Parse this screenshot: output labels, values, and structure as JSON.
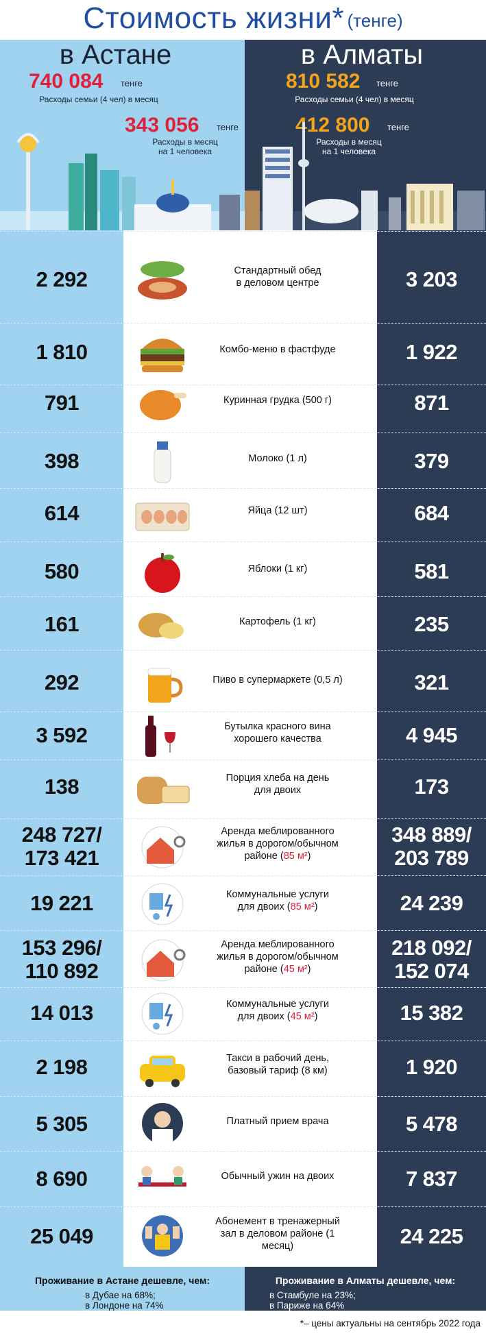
{
  "header": {
    "title": "Стоимость жизни",
    "asterisk": "*",
    "unit": "(тенге)"
  },
  "astana": {
    "city": "в Астане",
    "family_total": "740 084",
    "family_unit": "тенге",
    "family_note": "Расходы семьи (4 чел) в месяц",
    "person_total": "343 056",
    "person_unit": "тенге",
    "person_note_1": "Расходы в месяц",
    "person_note_2": "на 1 человека"
  },
  "almaty": {
    "city": "в Алматы",
    "family_total": "810 582",
    "family_unit": "тенге",
    "family_note": "Расходы семьи (4 чел) в месяц",
    "person_total": "412 800",
    "person_unit": "тенге",
    "person_note_1": "Расходы в месяц",
    "person_note_2": "на 1 человека"
  },
  "rows": [
    {
      "astana": "2 292",
      "item": "Стандартный обед\nв деловом центре",
      "almaty": "3 203",
      "icon": "lunch-icon"
    },
    {
      "astana": "1 810",
      "item": "Комбо-меню в фастфуде",
      "almaty": "1 922",
      "icon": "burger-icon"
    },
    {
      "astana": "791",
      "item": "Куринная грудка (500 г)",
      "almaty": "871",
      "icon": "chicken-icon"
    },
    {
      "astana": "398",
      "item": "Молоко (1 л)",
      "almaty": "379",
      "icon": "milk-icon"
    },
    {
      "astana": "614",
      "item": "Яйца (12 шт)",
      "almaty": "684",
      "icon": "eggs-icon"
    },
    {
      "astana": "580",
      "item": "Яблоки (1 кг)",
      "almaty": "581",
      "icon": "apple-icon"
    },
    {
      "astana": "161",
      "item": "Картофель (1 кг)",
      "almaty": "235",
      "icon": "potato-icon"
    },
    {
      "astana": "292",
      "item": "Пиво в супермаркете (0,5 л)",
      "almaty": "321",
      "icon": "beer-icon"
    },
    {
      "astana": "3 592",
      "item": "Бутылка красного вина\nхорошего качества",
      "almaty": "4 945",
      "icon": "wine-icon"
    },
    {
      "astana": "138",
      "item": "Порция хлеба на день\nдля двоих",
      "almaty": "173",
      "icon": "bread-icon"
    },
    {
      "astana": "248 727/\n173 421",
      "item": "Аренда меблированного\nжилья в дорогом/обычном\nрайоне (",
      "item_hl": "85 м²",
      "item_end": ")",
      "almaty": "348 889/\n203 789",
      "icon": "house-key-icon"
    },
    {
      "astana": "19 221",
      "item": "Коммунальные услуги\nдля двоих (",
      "item_hl": "85 м²",
      "item_end": ")",
      "almaty": "24 239",
      "icon": "utilities-icon"
    },
    {
      "astana": "153 296/\n110 892",
      "item": "Аренда меблированного\nжилья в дорогом/обычном\nрайоне (",
      "item_hl": "45 м²",
      "item_end": ")",
      "almaty": "218 092/\n152 074",
      "icon": "house-key-icon"
    },
    {
      "astana": "14 013",
      "item": "Коммунальные услуги\nдля двоих (",
      "item_hl": "45 м²",
      "item_end": ")",
      "almaty": "15 382",
      "icon": "utilities-icon"
    },
    {
      "astana": "2 198",
      "item": "Такси в рабочий день,\nбазовый тариф (8 км)",
      "almaty": "1 920",
      "icon": "taxi-icon"
    },
    {
      "astana": "5 305",
      "item": "Платный прием врача",
      "almaty": "5 478",
      "icon": "doctor-icon"
    },
    {
      "astana": "8 690",
      "item": "Обычный ужин на двоих",
      "almaty": "7 837",
      "icon": "dinner-icon"
    },
    {
      "astana": "25 049",
      "item": "Абонемент в тренажерный\nзал в деловом районе (1\nмесяц)",
      "almaty": "24 225",
      "icon": "gym-icon"
    }
  ],
  "footer": {
    "astana_head": "Проживание в Астане дешевле, чем:",
    "astana_line1": "в Дубае на 68%;",
    "astana_line2": "в Лондоне на 74%",
    "almaty_head": "Проживание в Алматы дешевле, чем:",
    "almaty_line1": "в Стамбуле на 23%;",
    "almaty_line2": "в Париже на 64%",
    "footnote": "*– цены актуальны на сентябрь 2022 года"
  },
  "colors": {
    "astana_bg": "#9fd3f0",
    "almaty_bg": "#2d3c55",
    "title": "#1f4fa3",
    "astana_number": "#e0203a",
    "almaty_number": "#f2a51a",
    "highlight": "#e0203a"
  }
}
